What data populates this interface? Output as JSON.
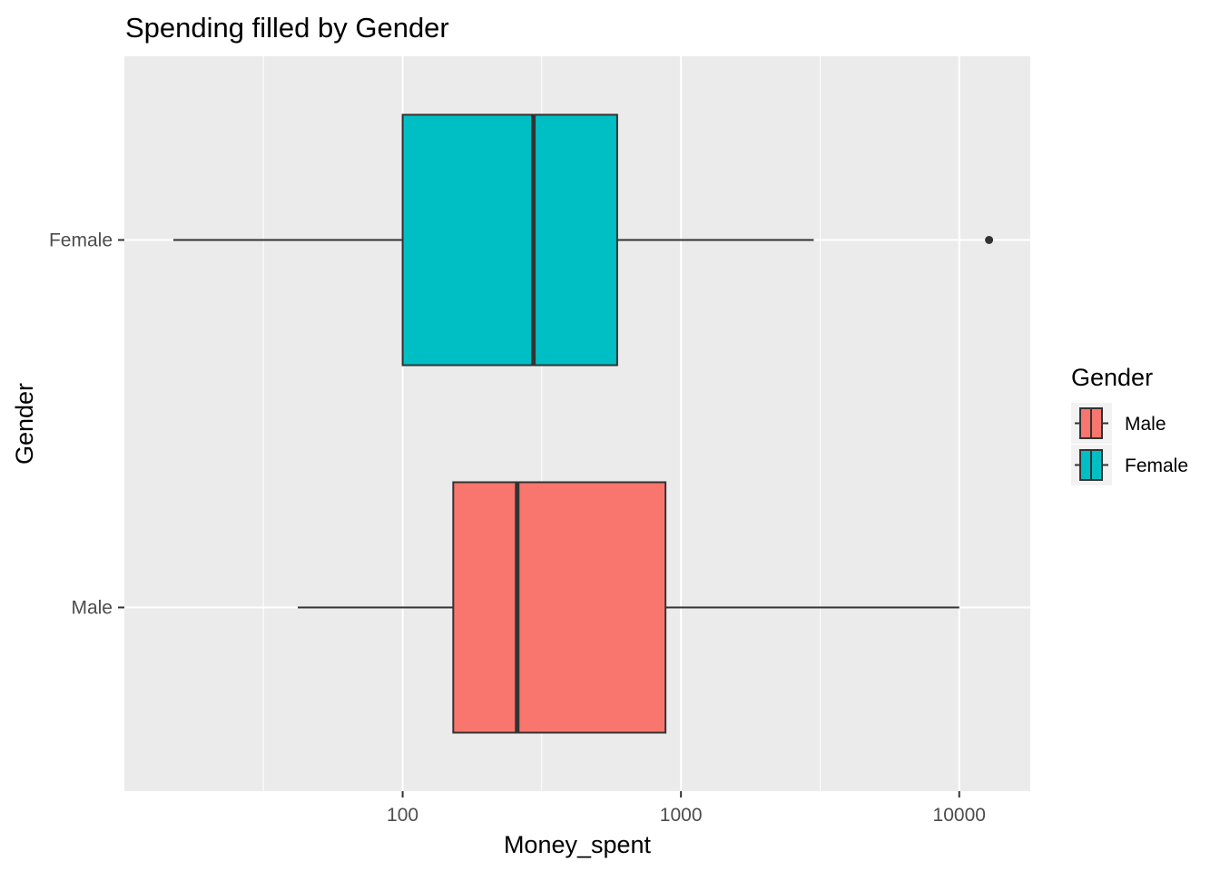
{
  "chart_data": {
    "type": "boxplot",
    "title": "Spending filled by Gender",
    "xlabel": "Money_spent",
    "ylabel": "Gender",
    "x_scale": "log10",
    "x_range": [
      10,
      18000
    ],
    "x_ticks": [
      {
        "value": 100,
        "label": "100"
      },
      {
        "value": 1000,
        "label": "1000"
      },
      {
        "value": 10000,
        "label": "10000"
      }
    ],
    "x_minor_gridlines": [
      31.6,
      316,
      3162
    ],
    "categories": [
      "Male",
      "Female"
    ],
    "series": [
      {
        "name": "Male",
        "color": "#F8766D",
        "whisker_low": 42,
        "q1": 152,
        "median": 258,
        "q3": 880,
        "whisker_high": 10000,
        "outliers": []
      },
      {
        "name": "Female",
        "color": "#00BFC4",
        "whisker_low": 15,
        "q1": 100,
        "median": 295,
        "q3": 590,
        "whisker_high": 3000,
        "outliers": [
          12800
        ]
      }
    ],
    "legend": {
      "title": "Gender",
      "position": "right",
      "entries": [
        "Male",
        "Female"
      ]
    },
    "grid": true,
    "panel_background": "#EBEBEB",
    "gridline_color": "#FFFFFF",
    "line_color": "#333333"
  }
}
